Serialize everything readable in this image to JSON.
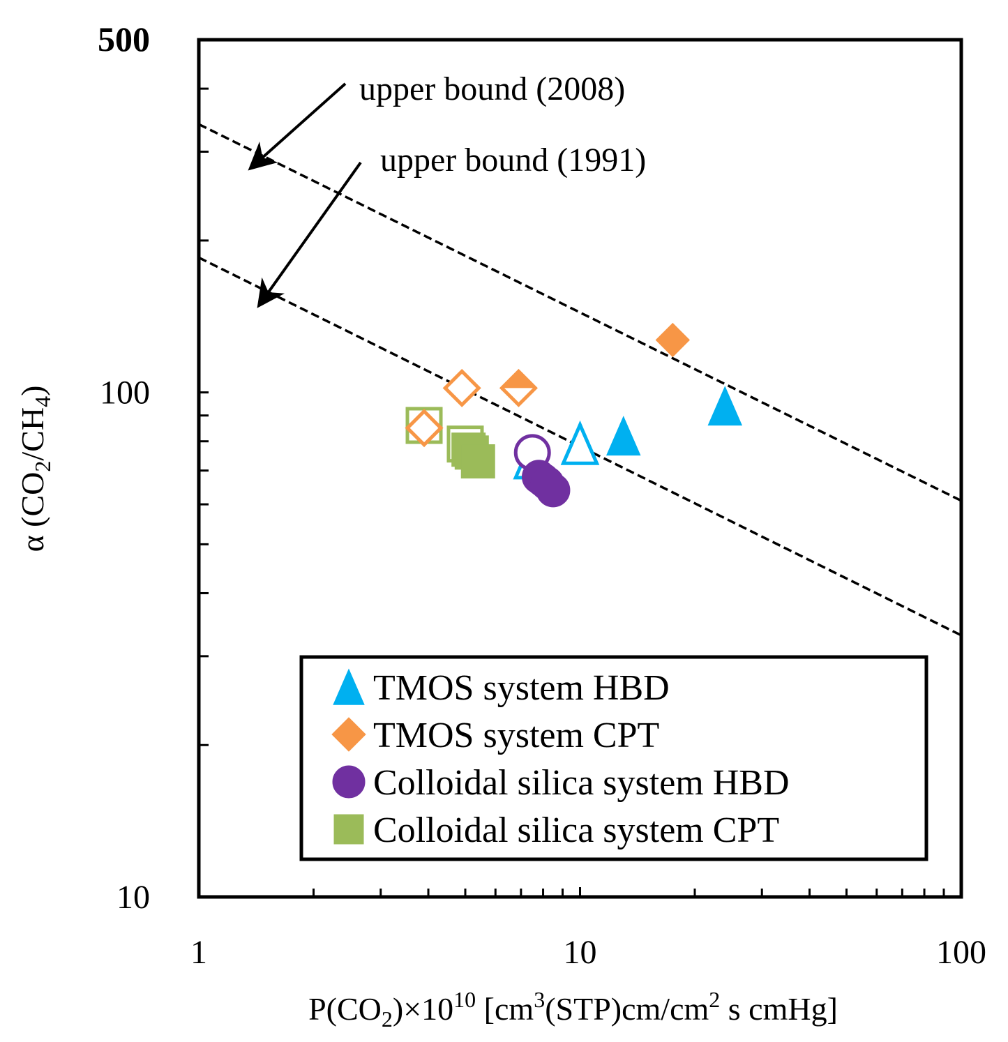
{
  "chart_data": {
    "type": "scatter",
    "xscale": "log",
    "yscale": "log",
    "xlim": [
      1,
      100
    ],
    "ylim": [
      10,
      500
    ],
    "x_ticks": [
      "1",
      "10",
      "100"
    ],
    "y_ticks": [
      "10",
      "100",
      "500"
    ],
    "xlabel_parts": {
      "a": "P(CO",
      "a_sub": "2",
      "b": ")×10",
      "b_sup": "10",
      "c": " [cm",
      "c_sup": "3",
      "d": "(STP)cm/cm",
      "d_sup": "2",
      "e": " s cmHg]"
    },
    "ylabel_parts": {
      "a": "α (CO",
      "a_sub": "2",
      "b": "/CH",
      "b_sub": "4",
      "c": ")"
    },
    "grid": false,
    "legend_position": "bottom-right",
    "series": [
      {
        "name": "TMOS system HBD",
        "color": "#00b0f0",
        "marker": "triangle",
        "points": [
          {
            "x": 7.5,
            "y": 74,
            "filled": false
          },
          {
            "x": 10.0,
            "y": 79,
            "filled": false
          },
          {
            "x": 13.0,
            "y": 82,
            "filled": true
          },
          {
            "x": 24.0,
            "y": 94,
            "filled": true
          }
        ]
      },
      {
        "name": "TMOS system CPT",
        "color": "#f79646",
        "marker": "diamond",
        "points": [
          {
            "x": 3.9,
            "y": 85,
            "filled": false
          },
          {
            "x": 4.9,
            "y": 102,
            "filled": false
          },
          {
            "x": 6.9,
            "y": 102,
            "filled": "half"
          },
          {
            "x": 17.5,
            "y": 127,
            "filled": true
          }
        ]
      },
      {
        "name": "Colloidal silica system HBD",
        "color": "#7030a0",
        "marker": "circle",
        "points": [
          {
            "x": 7.5,
            "y": 76,
            "filled": false
          },
          {
            "x": 7.8,
            "y": 68,
            "filled": true
          },
          {
            "x": 8.0,
            "y": 67,
            "filled": true
          },
          {
            "x": 8.2,
            "y": 66,
            "filled": true
          },
          {
            "x": 8.5,
            "y": 64,
            "filled": true
          }
        ]
      },
      {
        "name": "Colloidal silica system CPT",
        "color": "#9bbb59",
        "marker": "square",
        "points": [
          {
            "x": 3.9,
            "y": 86,
            "filled": false
          },
          {
            "x": 5.0,
            "y": 79,
            "filled": false
          },
          {
            "x": 5.1,
            "y": 77,
            "filled": true
          },
          {
            "x": 5.2,
            "y": 76,
            "filled": true
          },
          {
            "x": 5.4,
            "y": 73,
            "filled": true
          }
        ]
      }
    ],
    "lines": [
      {
        "label": "upper bound (2008)",
        "style": "dashed",
        "x": [
          1,
          100
        ],
        "y": [
          340,
          61
        ]
      },
      {
        "label": "upper bound  (1991)",
        "style": "dashed",
        "x": [
          1,
          100
        ],
        "y": [
          185,
          33
        ]
      }
    ],
    "annotations": [
      {
        "text": "upper bound (2008)",
        "arrow_to": {
          "x": 1.38,
          "y": 280
        }
      },
      {
        "text": "upper bound  (1991)",
        "arrow_to": {
          "x": 1.45,
          "y": 150
        }
      }
    ]
  }
}
